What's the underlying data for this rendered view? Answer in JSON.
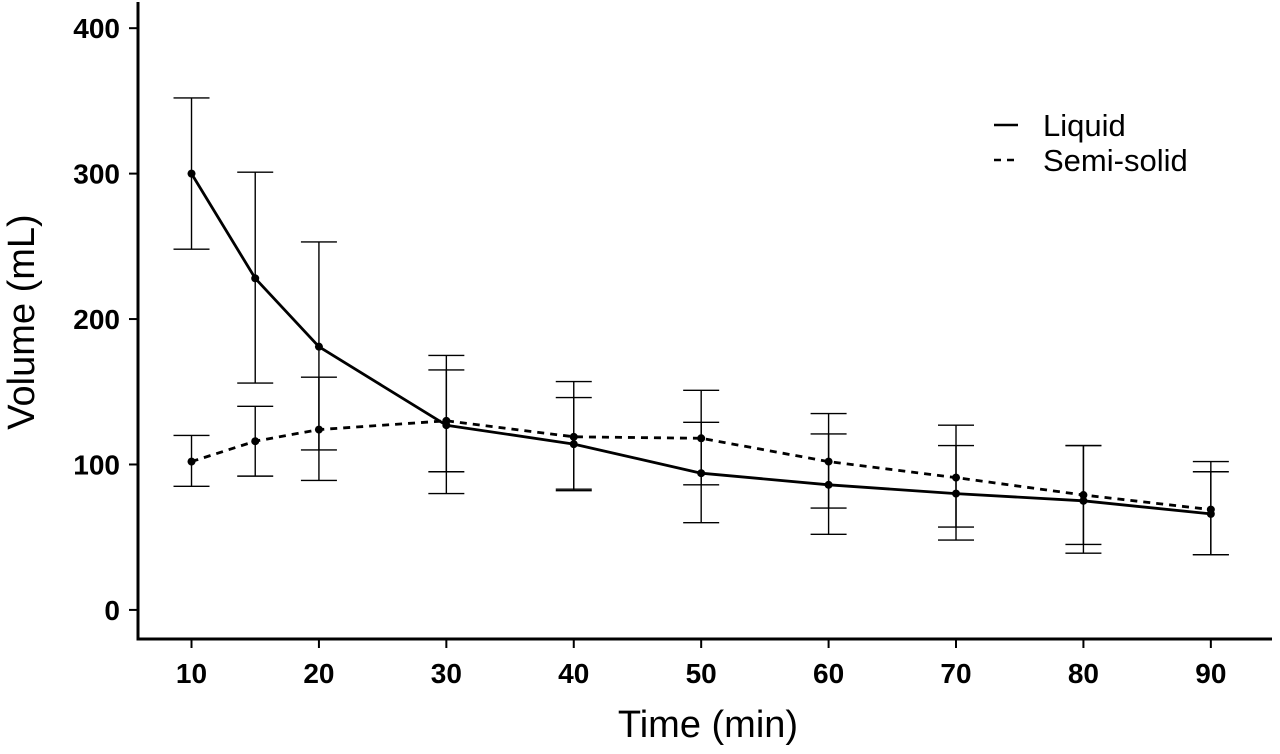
{
  "chart_data": {
    "type": "line",
    "title": "",
    "xlabel": "Time (min)",
    "ylabel": "Volume (mL)",
    "x_ticks": [
      10,
      20,
      30,
      40,
      50,
      60,
      70,
      80,
      90
    ],
    "y_ticks": [
      0,
      100,
      200,
      300,
      400
    ],
    "xlim": [
      5.8,
      94.8
    ],
    "ylim": [
      -20,
      418
    ],
    "grid": false,
    "legend_position": "top-right",
    "series": [
      {
        "name": "Liquid",
        "line_style": "solid",
        "points": [
          {
            "x": 10,
            "y": 300,
            "err_low": 248,
            "err_high": 352
          },
          {
            "x": 15,
            "y": 228,
            "err_low": 156,
            "err_high": 301
          },
          {
            "x": 20,
            "y": 181,
            "err_low": 110,
            "err_high": 253
          },
          {
            "x": 30,
            "y": 127,
            "err_low": 80,
            "err_high": 165
          },
          {
            "x": 40,
            "y": 114,
            "err_low": 82,
            "err_high": 146
          },
          {
            "x": 50,
            "y": 94,
            "err_low": 60,
            "err_high": 129
          },
          {
            "x": 60,
            "y": 86,
            "err_low": 52,
            "err_high": 121
          },
          {
            "x": 70,
            "y": 80,
            "err_low": 48,
            "err_high": 113
          },
          {
            "x": 80,
            "y": 75,
            "err_low": 39,
            "err_high": 113
          },
          {
            "x": 90,
            "y": 66,
            "err_low": 38,
            "err_high": 95
          }
        ]
      },
      {
        "name": "Semi-solid",
        "line_style": "dashed",
        "points": [
          {
            "x": 10,
            "y": 102,
            "err_low": 85,
            "err_high": 120
          },
          {
            "x": 15,
            "y": 116,
            "err_low": 92,
            "err_high": 140
          },
          {
            "x": 20,
            "y": 124,
            "err_low": 89,
            "err_high": 160
          },
          {
            "x": 30,
            "y": 130,
            "err_low": 95,
            "err_high": 175
          },
          {
            "x": 40,
            "y": 119,
            "err_low": 83,
            "err_high": 157
          },
          {
            "x": 50,
            "y": 118,
            "err_low": 86,
            "err_high": 151
          },
          {
            "x": 60,
            "y": 102,
            "err_low": 70,
            "err_high": 135
          },
          {
            "x": 70,
            "y": 91,
            "err_low": 57,
            "err_high": 127
          },
          {
            "x": 80,
            "y": 79,
            "err_low": 45,
            "err_high": 113
          },
          {
            "x": 90,
            "y": 69,
            "err_low": 38,
            "err_high": 102
          }
        ]
      }
    ]
  }
}
